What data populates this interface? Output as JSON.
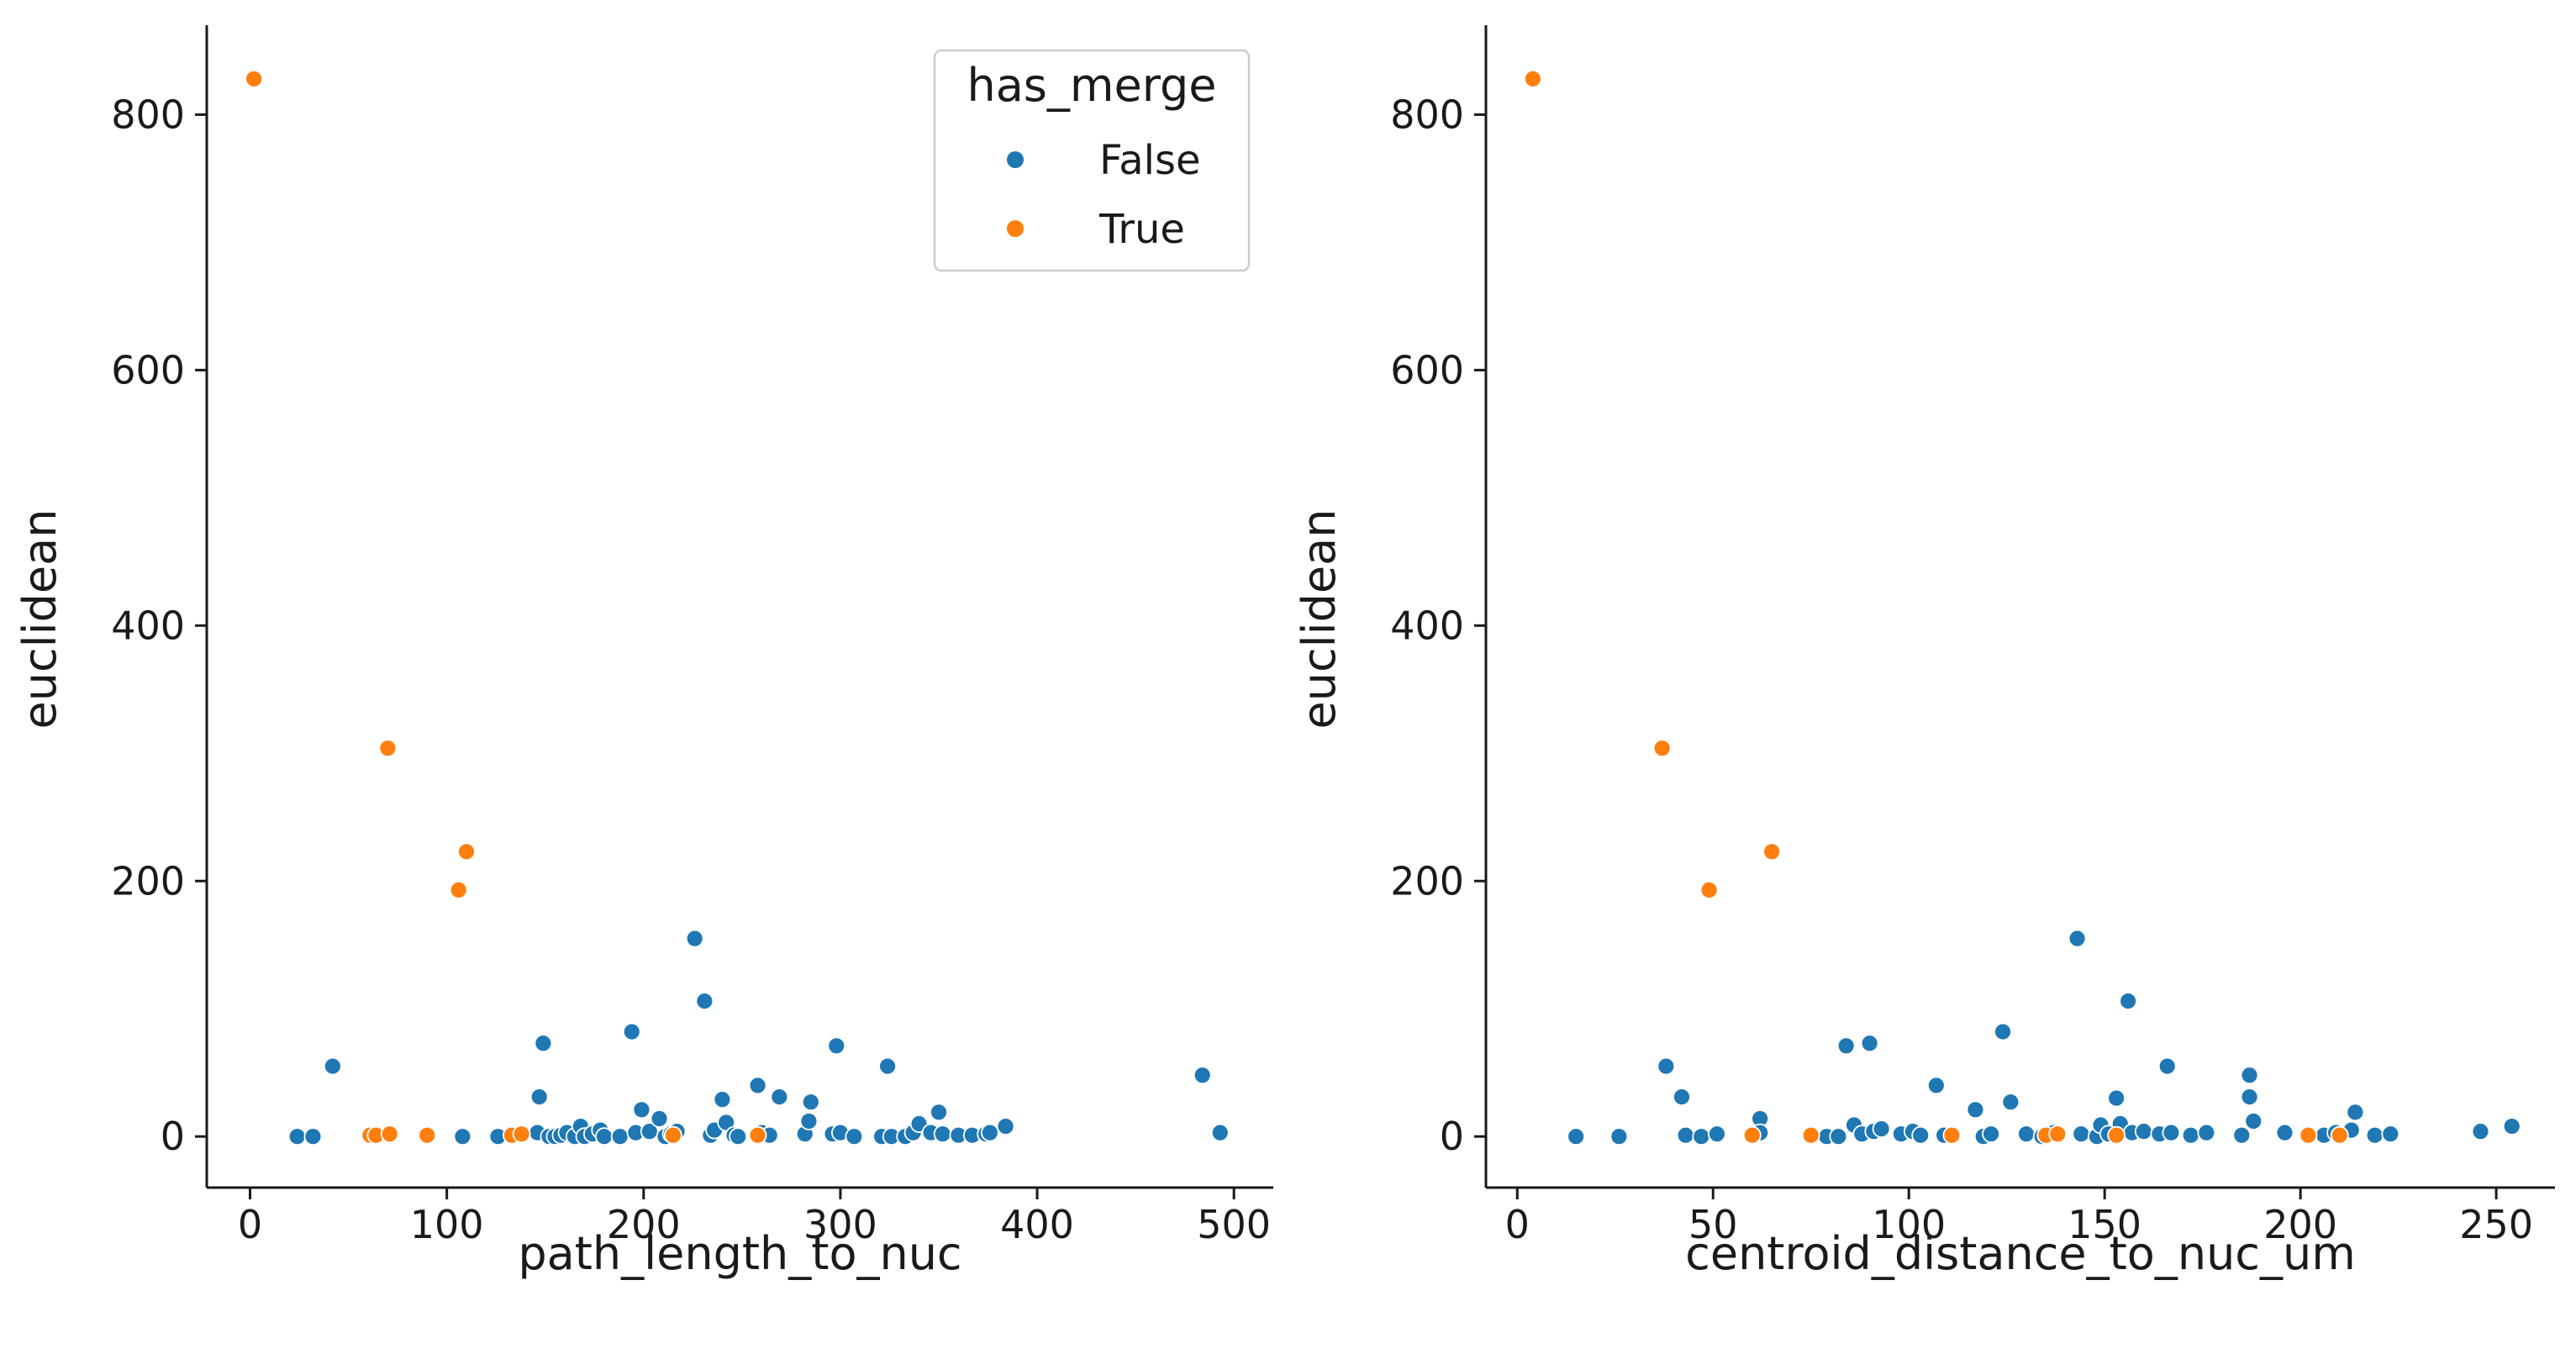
{
  "colors": {
    "False": "#1f77b4",
    "True": "#ff7f0e",
    "axis": "#1a1a1a",
    "legend_border": "#cccccc"
  },
  "legend": {
    "title": "has_merge",
    "entries": [
      {
        "label": "False",
        "color": "#1f77b4"
      },
      {
        "label": "True",
        "color": "#ff7f0e"
      }
    ],
    "placement": "top-right of left panel"
  },
  "chart_data": [
    {
      "type": "scatter",
      "title": "",
      "xlabel": "path_length_to_nuc",
      "ylabel": "euclidean",
      "xlim": [
        -22,
        520
      ],
      "ylim": [
        -40,
        870
      ],
      "xticks": [
        0,
        100,
        200,
        300,
        400,
        500
      ],
      "yticks": [
        0,
        200,
        400,
        600,
        800
      ],
      "grid": false,
      "series": [
        {
          "name": "False",
          "color": "#1f77b4",
          "points": [
            [
              24,
              0
            ],
            [
              32,
              0
            ],
            [
              42,
              55
            ],
            [
              108,
              0
            ],
            [
              126,
              0
            ],
            [
              146,
              3
            ],
            [
              147,
              31
            ],
            [
              149,
              73
            ],
            [
              152,
              0
            ],
            [
              155,
              0
            ],
            [
              158,
              1
            ],
            [
              161,
              3
            ],
            [
              165,
              0
            ],
            [
              168,
              8
            ],
            [
              170,
              0
            ],
            [
              174,
              2
            ],
            [
              178,
              5
            ],
            [
              180,
              0
            ],
            [
              188,
              0
            ],
            [
              194,
              82
            ],
            [
              196,
              3
            ],
            [
              199,
              21
            ],
            [
              203,
              4
            ],
            [
              208,
              14
            ],
            [
              211,
              0
            ],
            [
              214,
              2
            ],
            [
              217,
              4
            ],
            [
              226,
              155
            ],
            [
              231,
              106
            ],
            [
              234,
              1
            ],
            [
              236,
              5
            ],
            [
              240,
              29
            ],
            [
              242,
              11
            ],
            [
              246,
              1
            ],
            [
              248,
              0
            ],
            [
              258,
              40
            ],
            [
              260,
              3
            ],
            [
              264,
              1
            ],
            [
              269,
              31
            ],
            [
              282,
              2
            ],
            [
              284,
              12
            ],
            [
              285,
              27
            ],
            [
              296,
              2
            ],
            [
              298,
              71
            ],
            [
              300,
              3
            ],
            [
              307,
              0
            ],
            [
              321,
              0
            ],
            [
              324,
              55
            ],
            [
              326,
              0
            ],
            [
              333,
              0
            ],
            [
              337,
              3
            ],
            [
              340,
              10
            ],
            [
              346,
              3
            ],
            [
              350,
              19
            ],
            [
              352,
              2
            ],
            [
              360,
              1
            ],
            [
              367,
              1
            ],
            [
              374,
              2
            ],
            [
              376,
              3
            ],
            [
              384,
              8
            ],
            [
              484,
              48
            ],
            [
              493,
              3
            ]
          ]
        },
        {
          "name": "True",
          "color": "#ff7f0e",
          "points": [
            [
              2,
              828
            ],
            [
              61,
              1
            ],
            [
              64,
              1
            ],
            [
              70,
              304
            ],
            [
              71,
              2
            ],
            [
              90,
              1
            ],
            [
              106,
              193
            ],
            [
              110,
              223
            ],
            [
              133,
              1
            ],
            [
              138,
              2
            ],
            [
              215,
              1
            ],
            [
              258,
              1
            ]
          ]
        }
      ]
    },
    {
      "type": "scatter",
      "title": "",
      "xlabel": "centroid_distance_to_nuc_um",
      "ylabel": "euclidean",
      "xlim": [
        -8,
        265
      ],
      "ylim": [
        -40,
        870
      ],
      "xticks": [
        0,
        50,
        100,
        150,
        200,
        250
      ],
      "yticks": [
        0,
        200,
        400,
        600,
        800
      ],
      "grid": false,
      "series": [
        {
          "name": "False",
          "color": "#1f77b4",
          "points": [
            [
              15,
              0
            ],
            [
              26,
              0
            ],
            [
              38,
              55
            ],
            [
              42,
              31
            ],
            [
              43,
              1
            ],
            [
              47,
              0
            ],
            [
              51,
              2
            ],
            [
              62,
              14
            ],
            [
              62,
              3
            ],
            [
              79,
              0
            ],
            [
              82,
              0
            ],
            [
              84,
              71
            ],
            [
              86,
              9
            ],
            [
              88,
              2
            ],
            [
              90,
              73
            ],
            [
              91,
              4
            ],
            [
              93,
              6
            ],
            [
              98,
              2
            ],
            [
              101,
              4
            ],
            [
              103,
              1
            ],
            [
              107,
              40
            ],
            [
              109,
              1
            ],
            [
              117,
              21
            ],
            [
              119,
              0
            ],
            [
              121,
              2
            ],
            [
              124,
              82
            ],
            [
              126,
              27
            ],
            [
              130,
              2
            ],
            [
              134,
              0
            ],
            [
              137,
              3
            ],
            [
              143,
              155
            ],
            [
              144,
              2
            ],
            [
              148,
              0
            ],
            [
              149,
              9
            ],
            [
              151,
              2
            ],
            [
              153,
              30
            ],
            [
              154,
              10
            ],
            [
              156,
              106
            ],
            [
              157,
              3
            ],
            [
              160,
              4
            ],
            [
              164,
              2
            ],
            [
              166,
              55
            ],
            [
              167,
              3
            ],
            [
              172,
              1
            ],
            [
              176,
              3
            ],
            [
              185,
              1
            ],
            [
              187,
              48
            ],
            [
              187,
              31
            ],
            [
              188,
              12
            ],
            [
              196,
              3
            ],
            [
              206,
              1
            ],
            [
              209,
              3
            ],
            [
              213,
              5
            ],
            [
              214,
              19
            ],
            [
              219,
              1
            ],
            [
              223,
              2
            ],
            [
              246,
              4
            ],
            [
              254,
              8
            ]
          ]
        },
        {
          "name": "True",
          "color": "#ff7f0e",
          "points": [
            [
              4,
              828
            ],
            [
              37,
              304
            ],
            [
              49,
              193
            ],
            [
              60,
              1
            ],
            [
              65,
              223
            ],
            [
              75,
              1
            ],
            [
              111,
              1
            ],
            [
              135,
              1
            ],
            [
              138,
              2
            ],
            [
              153,
              1
            ],
            [
              202,
              1
            ],
            [
              210,
              1
            ]
          ]
        }
      ]
    }
  ]
}
